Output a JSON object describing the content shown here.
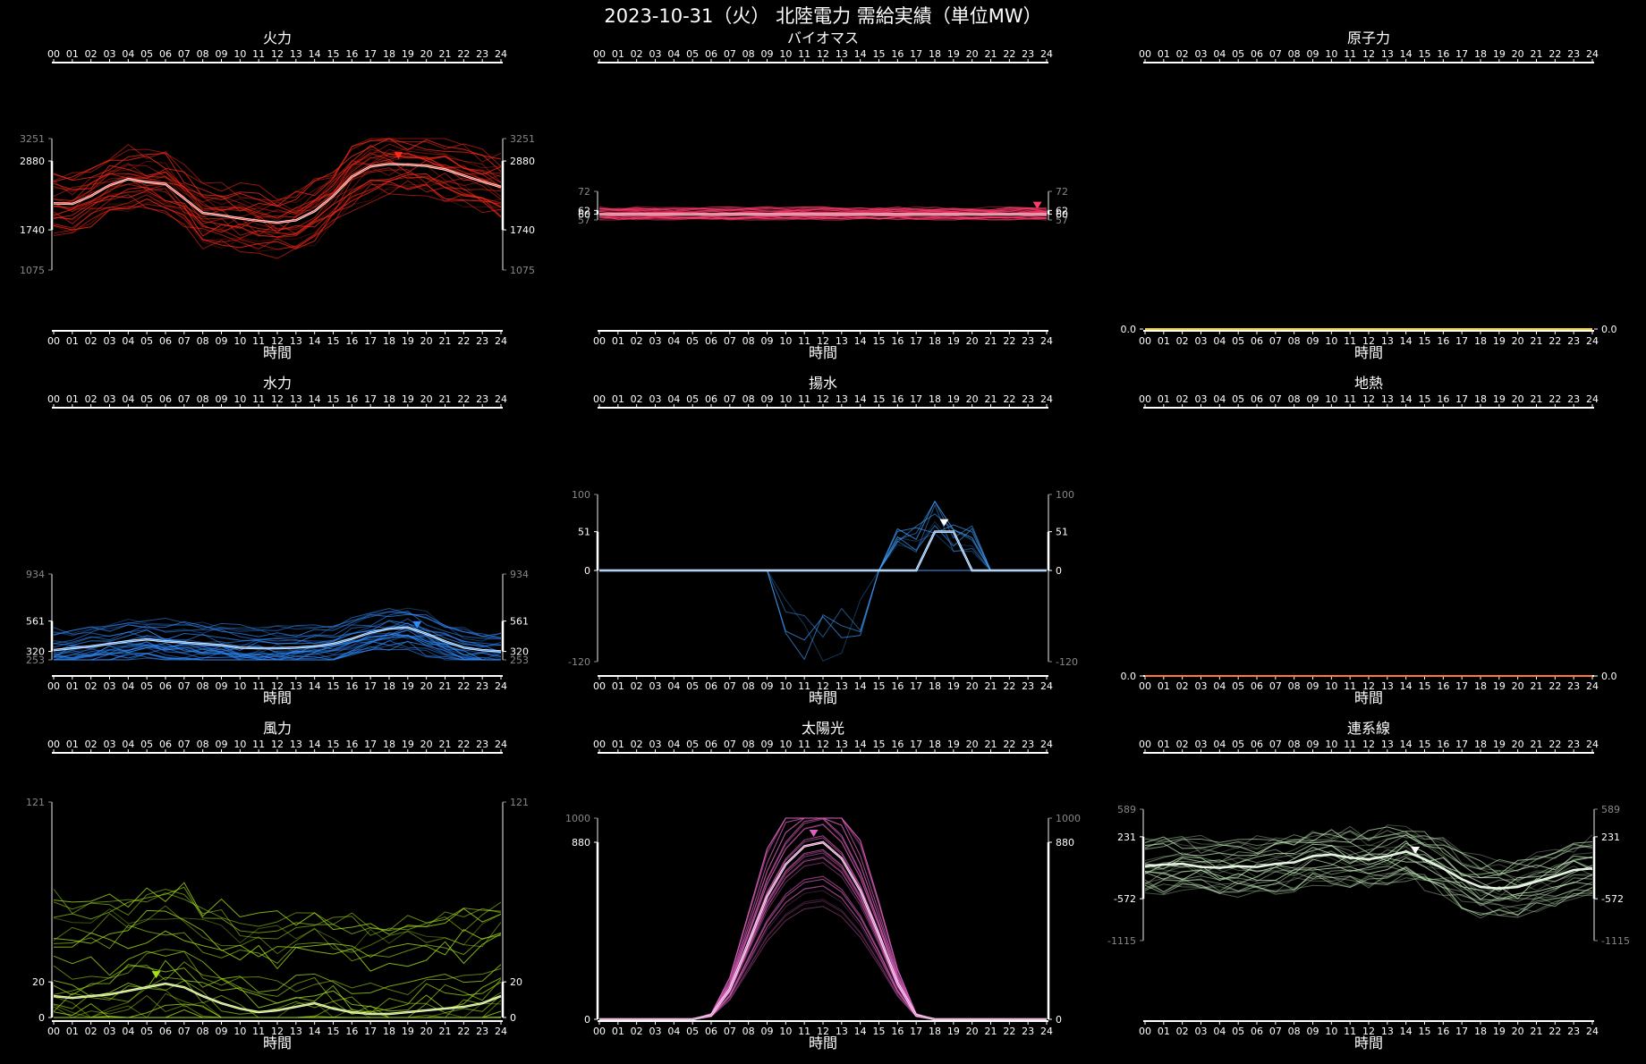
{
  "page_title": "2023-10-31（火） 北陸電力 需給実績（単位MW）",
  "hours": [
    "00",
    "01",
    "02",
    "03",
    "04",
    "05",
    "06",
    "07",
    "08",
    "09",
    "10",
    "11",
    "12",
    "13",
    "14",
    "15",
    "16",
    "17",
    "18",
    "19",
    "20",
    "21",
    "22",
    "23",
    "24"
  ],
  "chart_data": [
    {
      "type": "line",
      "title": "火力",
      "xlabel": "時間",
      "color": "#ff2a1a",
      "ylim": [
        1075,
        3251
      ],
      "yticks_gray": [
        "3251",
        "1075"
      ],
      "yticks_white": [
        "2880",
        "1740"
      ],
      "today": [
        2180,
        2170,
        2300,
        2480,
        2580,
        2530,
        2500,
        2260,
        2020,
        1980,
        1930,
        1890,
        1860,
        1900,
        2050,
        2300,
        2620,
        2790,
        2830,
        2820,
        2800,
        2740,
        2640,
        2540,
        2450
      ],
      "marker_hour": 18.5
    },
    {
      "type": "line",
      "title": "バイオマス",
      "xlabel": "時間",
      "color": "#ff3b6b",
      "ylim": [
        57,
        72
      ],
      "yticks_gray": [
        "72",
        "57"
      ],
      "yticks_white": [
        "62",
        "60"
      ],
      "today": [
        60,
        60,
        60,
        60,
        60,
        60,
        60,
        60,
        60,
        60,
        60,
        60,
        60,
        60,
        60,
        60,
        60,
        60,
        60,
        60,
        60,
        60,
        60,
        60,
        60
      ],
      "marker_hour": 23.5
    },
    {
      "type": "line",
      "title": "原子力",
      "xlabel": "時間",
      "color": "#ffd030",
      "ylim": [
        0,
        1
      ],
      "yticks_gray": [],
      "yticks_white": [
        "0.0"
      ],
      "today": [
        0,
        0,
        0,
        0,
        0,
        0,
        0,
        0,
        0,
        0,
        0,
        0,
        0,
        0,
        0,
        0,
        0,
        0,
        0,
        0,
        0,
        0,
        0,
        0,
        0
      ]
    },
    {
      "type": "line",
      "title": "水力",
      "xlabel": "時間",
      "color": "#2f8cff",
      "ylim": [
        253,
        934
      ],
      "yticks_gray": [
        "934",
        "253"
      ],
      "yticks_white": [
        "561",
        "320"
      ],
      "today": [
        330,
        345,
        360,
        380,
        400,
        415,
        400,
        390,
        380,
        370,
        350,
        345,
        345,
        350,
        360,
        380,
        420,
        470,
        500,
        510,
        460,
        400,
        350,
        330,
        320
      ],
      "marker_hour": 19.5
    },
    {
      "type": "line",
      "title": "揚水",
      "xlabel": "時間",
      "color": "#3fa0ff",
      "ylim": [
        -120,
        100
      ],
      "yticks_gray": [
        "100",
        "-120"
      ],
      "yticks_white": [
        "51",
        "0"
      ],
      "today": [
        0,
        0,
        0,
        0,
        0,
        0,
        0,
        0,
        0,
        0,
        0,
        0,
        0,
        0,
        0,
        0,
        0,
        0,
        51,
        51,
        0,
        0,
        0,
        0,
        0
      ],
      "marker_hour": 18.5
    },
    {
      "type": "line",
      "title": "地熱",
      "xlabel": "時間",
      "color": "#ff7a30",
      "ylim": [
        0,
        1
      ],
      "yticks_gray": [],
      "yticks_white": [
        "0.0"
      ],
      "today": [
        0,
        0,
        0,
        0,
        0,
        0,
        0,
        0,
        0,
        0,
        0,
        0,
        0,
        0,
        0,
        0,
        0,
        0,
        0,
        0,
        0,
        0,
        0,
        0,
        0
      ]
    },
    {
      "type": "line",
      "title": "風力",
      "xlabel": "時間",
      "color": "#a6e01a",
      "ylim": [
        0,
        121
      ],
      "yticks_gray": [
        "121"
      ],
      "yticks_white": [
        "20",
        "0"
      ],
      "today": [
        12,
        11,
        12,
        13,
        15,
        17,
        19,
        17,
        12,
        8,
        5,
        3,
        4,
        6,
        8,
        5,
        3,
        2,
        2,
        3,
        4,
        5,
        6,
        8,
        12
      ],
      "marker_hour": 5.5
    },
    {
      "type": "line",
      "title": "太陽光",
      "xlabel": "時間",
      "color": "#e060c0",
      "ylim": [
        0,
        1000
      ],
      "yticks_gray": [
        "1000"
      ],
      "yticks_white": [
        "880",
        "0"
      ],
      "today": [
        0,
        0,
        0,
        0,
        0,
        0,
        20,
        150,
        380,
        610,
        770,
        860,
        880,
        800,
        640,
        420,
        180,
        20,
        0,
        0,
        0,
        0,
        0,
        0,
        0
      ],
      "marker_hour": 11.5
    },
    {
      "type": "line",
      "title": "連系線",
      "xlabel": "時間",
      "color": "#c8f0c0",
      "ylim": [
        -1115,
        589
      ],
      "yticks_gray": [
        "589",
        "-1115"
      ],
      "yticks_white": [
        "231",
        "-572"
      ],
      "today": [
        -150,
        -130,
        -120,
        -160,
        -170,
        -150,
        -160,
        -120,
        -100,
        -20,
        0,
        -40,
        -60,
        -20,
        40,
        -60,
        -180,
        -320,
        -420,
        -440,
        -420,
        -350,
        -280,
        -200,
        -180
      ],
      "marker_hour": 14.5
    }
  ]
}
